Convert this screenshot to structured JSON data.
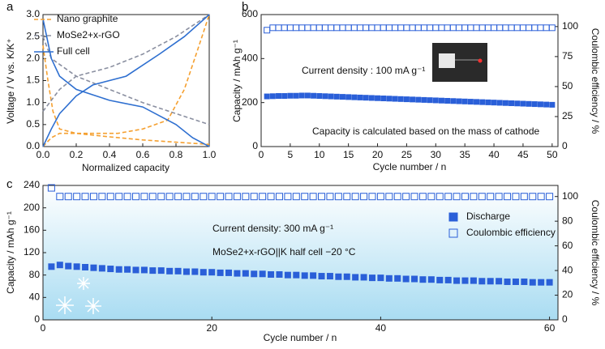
{
  "chart_data": [
    {
      "type": "line",
      "panel": "a",
      "xlabel": "Normalized capacity",
      "ylabel": "Voltage / V vs. K/K⁺",
      "xlim": [
        0,
        1
      ],
      "ylim": [
        0,
        3
      ],
      "xticks": [
        {
          "value": 0,
          "label": "0.0"
        },
        0.2,
        0.4,
        0.6,
        0.8,
        {
          "value": 1,
          "label": "1.0"
        }
      ],
      "yticks": [
        {
          "value": 0,
          "label": "0.0"
        },
        0.5,
        {
          "value": 1,
          "label": "1.0"
        },
        1.5,
        {
          "value": 2,
          "label": "2.0"
        },
        2.5,
        {
          "value": 3,
          "label": "3.0"
        }
      ],
      "series": [
        {
          "name": "Nano graphite",
          "color": "#f5a030",
          "dashed": true,
          "x": [
            0,
            0.03,
            0.06,
            0.1,
            0.2,
            0.4,
            0.6,
            0.8,
            1.0,
            null,
            0,
            0.05,
            0.1,
            0.3,
            0.45,
            0.6,
            0.75,
            0.85,
            0.93,
            1.0
          ],
          "values": [
            2.3,
            1.5,
            0.8,
            0.4,
            0.3,
            0.22,
            0.15,
            0.1,
            0.05,
            null,
            0,
            0.2,
            0.3,
            0.3,
            0.3,
            0.4,
            0.6,
            1.3,
            2.2,
            3.0
          ]
        },
        {
          "name": "MoSe2+x-rGO",
          "color": "#8a8fa0",
          "dashed": true,
          "x": [
            0,
            0.05,
            0.2,
            0.4,
            0.6,
            0.8,
            1.0,
            null,
            0,
            0.1,
            0.2,
            0.4,
            0.6,
            0.8,
            1.0
          ],
          "values": [
            2.5,
            2.0,
            1.6,
            1.3,
            1.0,
            0.75,
            0.5,
            null,
            0.8,
            1.3,
            1.6,
            1.8,
            2.1,
            2.5,
            3.0
          ]
        },
        {
          "name": "Full cell",
          "color": "#2e6fd0",
          "dashed": false,
          "x": [
            0,
            0.05,
            0.1,
            0.2,
            0.4,
            0.6,
            0.8,
            0.9,
            1.0,
            null,
            0,
            0.05,
            0.1,
            0.2,
            0.3,
            0.5,
            0.7,
            0.85,
            1.0
          ],
          "values": [
            2.9,
            2.0,
            1.6,
            1.3,
            1.05,
            0.9,
            0.5,
            0.2,
            0,
            null,
            0,
            0.4,
            0.75,
            1.15,
            1.4,
            1.6,
            2.1,
            2.5,
            3.0
          ]
        }
      ]
    },
    {
      "type": "scatter",
      "panel": "b",
      "xlabel": "Cycle number / n",
      "ylabel": "Capacity / mAh g⁻¹",
      "y2label": "Coulombic efficiency / %",
      "annotations": [
        "Current density : 100 mA g⁻¹",
        "Capacity is calculated based on the mass of cathode"
      ],
      "xlim": [
        0,
        51
      ],
      "ylim": [
        0,
        600
      ],
      "y2lim": [
        0,
        110
      ],
      "xticks": [
        0,
        5,
        10,
        15,
        20,
        25,
        30,
        35,
        40,
        45,
        50
      ],
      "yticks": [
        0,
        200,
        400,
        600
      ],
      "y2ticks": [
        0,
        25,
        50,
        75,
        100
      ],
      "x": [
        1,
        2,
        3,
        4,
        5,
        6,
        7,
        8,
        9,
        10,
        11,
        12,
        13,
        14,
        15,
        16,
        17,
        18,
        19,
        20,
        21,
        22,
        23,
        24,
        25,
        26,
        27,
        28,
        29,
        30,
        31,
        32,
        33,
        34,
        35,
        36,
        37,
        38,
        39,
        40,
        41,
        42,
        43,
        44,
        45,
        46,
        47,
        48,
        49,
        50
      ],
      "series": [
        {
          "color": "#2a5fd8",
          "marker": "filled",
          "values": [
            228,
            229,
            230,
            230,
            231,
            231,
            232,
            232,
            231,
            230,
            229,
            228,
            227,
            226,
            225,
            224,
            223,
            222,
            221,
            220,
            219,
            218,
            217,
            216,
            215,
            214,
            213,
            212,
            211,
            210,
            209,
            208,
            207,
            206,
            205,
            204,
            203,
            202,
            201,
            200,
            199,
            198,
            197,
            196,
            195,
            194,
            193,
            192,
            191,
            190
          ]
        },
        {
          "color": "#2a5fd8",
          "marker": "open",
          "axis": "y2",
          "values": [
            97,
            99,
            99,
            99,
            99,
            99,
            99,
            99,
            99,
            99,
            99,
            99,
            99,
            99,
            99,
            99,
            99,
            99,
            99,
            99,
            99,
            99,
            99,
            99,
            99,
            99,
            99,
            99,
            99,
            99,
            99,
            99,
            99,
            99,
            99,
            99,
            99,
            99,
            99,
            99,
            99,
            99,
            99,
            99,
            99,
            99,
            99,
            99,
            99,
            99
          ]
        }
      ]
    },
    {
      "type": "scatter",
      "panel": "c",
      "xlabel": "Cycle number / n",
      "ylabel": "Capacity / mAh g⁻¹",
      "y2label": "Coulombic efficiency / %",
      "annotations": [
        "Current density: 300 mA g⁻¹",
        "MoSe2+x-rGO||K  half cell  −20 °C"
      ],
      "xlim": [
        0,
        61
      ],
      "ylim": [
        0,
        240
      ],
      "y2lim": [
        0,
        109
      ],
      "xticks": [
        0,
        20,
        40,
        60
      ],
      "yticks": [
        0,
        40,
        80,
        120,
        160,
        200,
        240
      ],
      "y2ticks": [
        0,
        20,
        40,
        60,
        80,
        100
      ],
      "x": [
        1,
        2,
        3,
        4,
        5,
        6,
        7,
        8,
        9,
        10,
        11,
        12,
        13,
        14,
        15,
        16,
        17,
        18,
        19,
        20,
        21,
        22,
        23,
        24,
        25,
        26,
        27,
        28,
        29,
        30,
        31,
        32,
        33,
        34,
        35,
        36,
        37,
        38,
        39,
        40,
        41,
        42,
        43,
        44,
        45,
        46,
        47,
        48,
        49,
        50,
        51,
        52,
        53,
        54,
        55,
        56,
        57,
        58,
        59,
        60
      ],
      "series": [
        {
          "name": "Discharge",
          "color": "#2a5fd8",
          "marker": "filled",
          "values": [
            95,
            98,
            96,
            95,
            94,
            93,
            92,
            91,
            90,
            90,
            89,
            89,
            88,
            88,
            87,
            87,
            86,
            86,
            85,
            85,
            84,
            84,
            83,
            83,
            82,
            82,
            81,
            81,
            80,
            80,
            79,
            79,
            78,
            78,
            77,
            77,
            76,
            76,
            75,
            75,
            74,
            74,
            73,
            73,
            72,
            72,
            71,
            71,
            70,
            70,
            70,
            69,
            69,
            69,
            68,
            68,
            68,
            67,
            67,
            67
          ]
        },
        {
          "name": "Coulombic efficiency",
          "color": "#2a5fd8",
          "marker": "open",
          "axis": "y2",
          "values": [
            107,
            100,
            100,
            100,
            100,
            100,
            100,
            100,
            100,
            100,
            100,
            100,
            100,
            100,
            100,
            100,
            100,
            100,
            100,
            100,
            100,
            100,
            100,
            100,
            100,
            100,
            100,
            100,
            100,
            100,
            100,
            100,
            100,
            100,
            100,
            100,
            100,
            100,
            100,
            100,
            100,
            100,
            100,
            100,
            100,
            100,
            100,
            100,
            100,
            100,
            100,
            100,
            100,
            100,
            100,
            100,
            100,
            100,
            100,
            100
          ]
        }
      ]
    }
  ]
}
